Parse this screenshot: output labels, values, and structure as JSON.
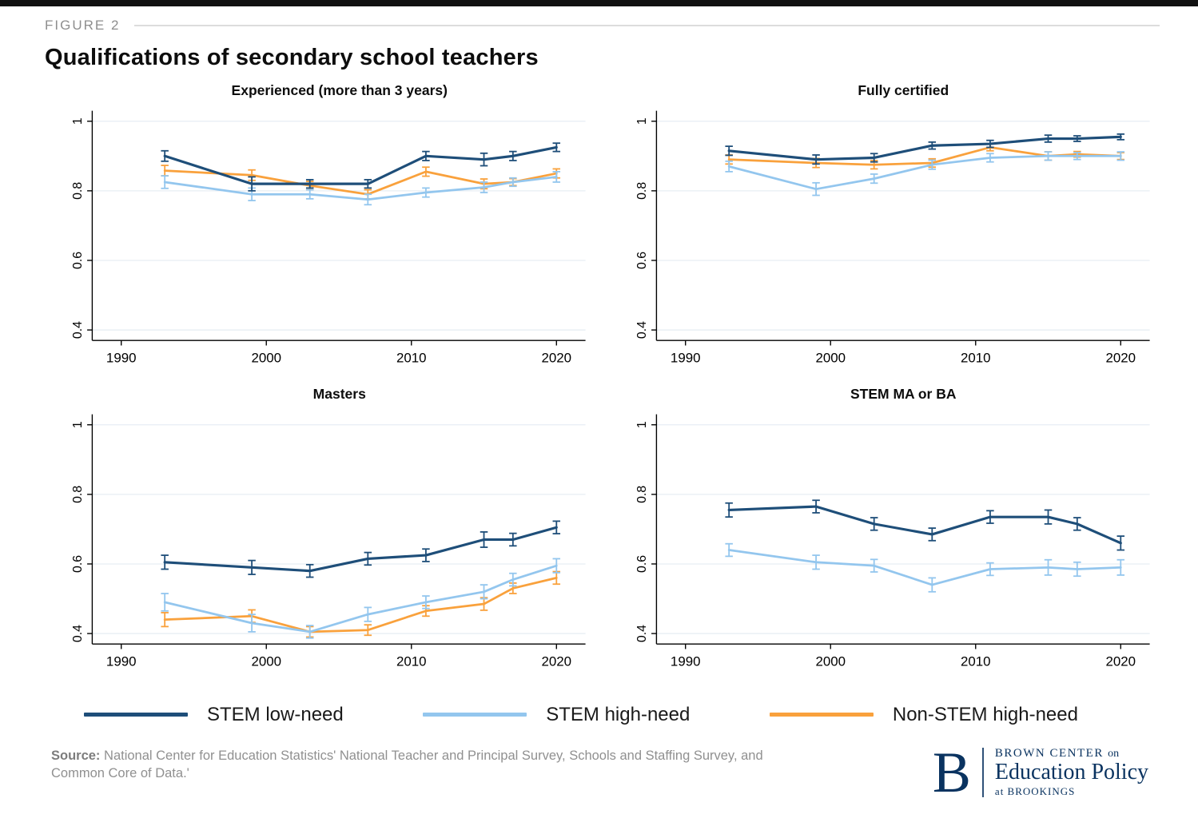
{
  "page": {
    "figure_label": "FIGURE 2",
    "title": "Qualifications of secondary school teachers",
    "source_label": "Source:",
    "source_text": " National Center for Education Statistics' National Teacher and Principal Survey, Schools and Staffing Survey, and Common Core of Data.'",
    "logo": {
      "b": "B",
      "line1a": "BROWN CENTER",
      "line1b": "on",
      "line2": "Education Policy",
      "line3": "at BROOKINGS"
    }
  },
  "colors": {
    "stem_low": "#1e4e79",
    "stem_high": "#93c6ee",
    "non_stem_high": "#f9a13c",
    "grid": "#e7edf4",
    "axis": "#000000"
  },
  "legend": [
    {
      "label": "STEM low-need",
      "color_key": "stem_low"
    },
    {
      "label": "STEM high-need",
      "color_key": "stem_high"
    },
    {
      "label": "Non-STEM high-need",
      "color_key": "non_stem_high"
    }
  ],
  "chart_data": [
    {
      "type": "line",
      "title": "Experienced (more than 3 years)",
      "x": [
        1993,
        1999,
        2003,
        2007,
        2011,
        2015,
        2017,
        2020
      ],
      "xlim": [
        1988,
        2022
      ],
      "ylim": [
        0.37,
        1.03
      ],
      "xticks": [
        1990,
        2000,
        2010,
        2020
      ],
      "yticks": [
        0.4,
        0.6,
        0.8,
        1
      ],
      "series": [
        {
          "name": "STEM low-need",
          "color": "stem_low",
          "values": [
            0.9,
            0.82,
            0.82,
            0.82,
            0.9,
            0.89,
            0.9,
            0.925
          ],
          "errors": [
            0.015,
            0.02,
            0.012,
            0.012,
            0.013,
            0.018,
            0.013,
            0.012
          ]
        },
        {
          "name": "STEM high-need",
          "color": "stem_high",
          "values": [
            0.825,
            0.79,
            0.79,
            0.775,
            0.795,
            0.81,
            0.825,
            0.84
          ],
          "errors": [
            0.018,
            0.018,
            0.013,
            0.015,
            0.013,
            0.015,
            0.012,
            0.015
          ]
        },
        {
          "name": "Non-STEM high-need",
          "color": "non_stem_high",
          "values": [
            0.858,
            0.845,
            0.815,
            0.79,
            0.855,
            0.82,
            0.825,
            0.85
          ],
          "errors": [
            0.015,
            0.015,
            0.012,
            0.013,
            0.013,
            0.014,
            0.01,
            0.013
          ]
        }
      ]
    },
    {
      "type": "line",
      "title": "Fully certified",
      "x": [
        1993,
        1999,
        2003,
        2007,
        2011,
        2015,
        2017,
        2020
      ],
      "xlim": [
        1988,
        2022
      ],
      "ylim": [
        0.37,
        1.03
      ],
      "xticks": [
        1990,
        2000,
        2010,
        2020
      ],
      "yticks": [
        0.4,
        0.6,
        0.8,
        1
      ],
      "series": [
        {
          "name": "STEM low-need",
          "color": "stem_low",
          "values": [
            0.915,
            0.89,
            0.895,
            0.93,
            0.935,
            0.95,
            0.95,
            0.955
          ],
          "errors": [
            0.013,
            0.013,
            0.012,
            0.01,
            0.01,
            0.01,
            0.008,
            0.008
          ]
        },
        {
          "name": "STEM high-need",
          "color": "stem_high",
          "values": [
            0.87,
            0.805,
            0.835,
            0.875,
            0.895,
            0.9,
            0.9,
            0.9
          ],
          "errors": [
            0.015,
            0.018,
            0.013,
            0.013,
            0.012,
            0.012,
            0.01,
            0.012
          ]
        },
        {
          "name": "Non-STEM high-need",
          "color": "non_stem_high",
          "values": [
            0.89,
            0.88,
            0.875,
            0.88,
            0.925,
            0.9,
            0.905,
            0.9
          ],
          "errors": [
            0.013,
            0.013,
            0.012,
            0.012,
            0.01,
            0.012,
            0.008,
            0.01
          ]
        }
      ]
    },
    {
      "type": "line",
      "title": "Masters",
      "x": [
        1993,
        1999,
        2003,
        2007,
        2011,
        2015,
        2017,
        2020
      ],
      "xlim": [
        1988,
        2022
      ],
      "ylim": [
        0.37,
        1.03
      ],
      "xticks": [
        1990,
        2000,
        2010,
        2020
      ],
      "yticks": [
        0.4,
        0.6,
        0.8,
        1
      ],
      "series": [
        {
          "name": "STEM low-need",
          "color": "stem_low",
          "values": [
            0.605,
            0.59,
            0.58,
            0.615,
            0.625,
            0.67,
            0.67,
            0.705
          ],
          "errors": [
            0.02,
            0.02,
            0.018,
            0.018,
            0.018,
            0.022,
            0.018,
            0.018
          ]
        },
        {
          "name": "STEM high-need",
          "color": "stem_high",
          "values": [
            0.49,
            0.43,
            0.405,
            0.455,
            0.49,
            0.52,
            0.555,
            0.595
          ],
          "errors": [
            0.025,
            0.025,
            0.018,
            0.02,
            0.018,
            0.02,
            0.018,
            0.02
          ]
        },
        {
          "name": "Non-STEM high-need",
          "color": "non_stem_high",
          "values": [
            0.44,
            0.45,
            0.405,
            0.41,
            0.465,
            0.485,
            0.53,
            0.56
          ],
          "errors": [
            0.02,
            0.018,
            0.015,
            0.015,
            0.015,
            0.018,
            0.015,
            0.018
          ]
        }
      ]
    },
    {
      "type": "line",
      "title": "STEM MA or BA",
      "x": [
        1993,
        1999,
        2003,
        2007,
        2011,
        2015,
        2017,
        2020
      ],
      "xlim": [
        1988,
        2022
      ],
      "ylim": [
        0.37,
        1.03
      ],
      "xticks": [
        1990,
        2000,
        2010,
        2020
      ],
      "yticks": [
        0.4,
        0.6,
        0.8,
        1
      ],
      "series": [
        {
          "name": "STEM low-need",
          "color": "stem_low",
          "values": [
            0.755,
            0.765,
            0.715,
            0.685,
            0.735,
            0.735,
            0.715,
            0.66
          ],
          "errors": [
            0.02,
            0.018,
            0.018,
            0.018,
            0.018,
            0.02,
            0.018,
            0.02
          ]
        },
        {
          "name": "STEM high-need",
          "color": "stem_high",
          "values": [
            0.64,
            0.605,
            0.595,
            0.54,
            0.585,
            0.59,
            0.585,
            0.59
          ],
          "errors": [
            0.018,
            0.02,
            0.018,
            0.02,
            0.018,
            0.022,
            0.02,
            0.022
          ]
        }
      ]
    }
  ]
}
